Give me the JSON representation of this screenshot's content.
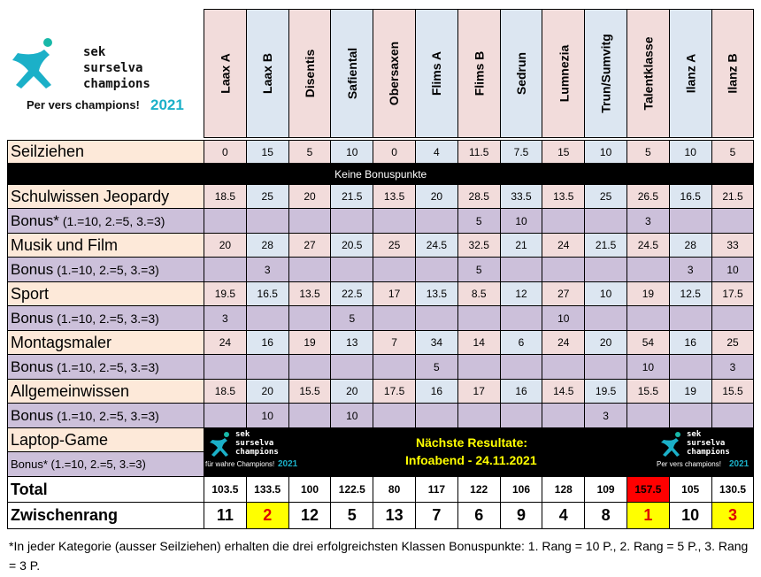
{
  "logo": {
    "line1": "sek",
    "line2": "surselva",
    "line3": "champions",
    "slogan": "Per vers champions!",
    "year": "2021"
  },
  "columns": [
    "Laax A",
    "Laax B",
    "Disentis",
    "Safiental",
    "Obersaxen",
    "Flims A",
    "Flims B",
    "Sedrun",
    "Lumnezia",
    "Trun/Sumvitg",
    "Talentklasse",
    "Ilanz A",
    "Ilanz B"
  ],
  "rows": [
    {
      "label": "Seilziehen",
      "values": [
        0,
        15,
        5,
        10,
        0,
        4,
        11.5,
        7.5,
        15,
        10,
        5,
        10,
        5
      ]
    },
    {
      "banner": "Keine Bonuspunkte"
    },
    {
      "label": "Schulwissen Jeopardy",
      "values": [
        18.5,
        25,
        20,
        21.5,
        13.5,
        20,
        28.5,
        33.5,
        13.5,
        25,
        26.5,
        16.5,
        21.5
      ]
    },
    {
      "label": "Bonus*",
      "note": "(1.=10, 2.=5, 3.=3)",
      "values": [
        null,
        null,
        null,
        null,
        null,
        null,
        5,
        10,
        null,
        null,
        3,
        null,
        null
      ]
    },
    {
      "label": "Musik und Film",
      "values": [
        20,
        28,
        27,
        20.5,
        25,
        24.5,
        32.5,
        21,
        24,
        21.5,
        24.5,
        28,
        33
      ]
    },
    {
      "label": "Bonus",
      "note": "(1.=10, 2.=5, 3.=3)",
      "values": [
        null,
        3,
        null,
        null,
        null,
        null,
        5,
        null,
        null,
        null,
        null,
        3,
        10
      ]
    },
    {
      "label": "Sport",
      "values": [
        19.5,
        16.5,
        13.5,
        22.5,
        17,
        13.5,
        8.5,
        12,
        27,
        10,
        19,
        12.5,
        17.5
      ]
    },
    {
      "label": "Bonus",
      "note": "(1.=10, 2.=5, 3.=3)",
      "values": [
        3,
        null,
        null,
        5,
        null,
        null,
        null,
        null,
        10,
        null,
        null,
        null,
        null
      ]
    },
    {
      "label": "Montagsmaler",
      "values": [
        24,
        16,
        19,
        13,
        7,
        34,
        14,
        6,
        24,
        20,
        54,
        16,
        25
      ]
    },
    {
      "label": "Bonus",
      "note": "(1.=10, 2.=5, 3.=3)",
      "values": [
        null,
        null,
        null,
        null,
        null,
        5,
        null,
        null,
        null,
        null,
        10,
        null,
        3
      ]
    },
    {
      "label": "Allgemeinwissen",
      "values": [
        18.5,
        20,
        15.5,
        20,
        17.5,
        16,
        17,
        16,
        14.5,
        19.5,
        15.5,
        19,
        15.5
      ]
    },
    {
      "label": "Bonus",
      "note": "(1.=10, 2.=5, 3.=3)",
      "values": [
        null,
        10,
        null,
        10,
        null,
        null,
        null,
        null,
        null,
        3,
        null,
        null,
        null
      ]
    }
  ],
  "laptop_game": {
    "label": "Laptop-Game",
    "bonus_label": "Bonus* (1.=10, 2.=5, 3.=3)",
    "next_results": "Nächste Resultate:",
    "date": "Infoabend - 24.11.2021",
    "logo_left": {
      "line1": "sek",
      "line2": "surselva",
      "line3": "champions",
      "slogan": "für wahre Champions!",
      "year": "2021"
    },
    "logo_right": {
      "line1": "sek",
      "line2": "surselva",
      "line3": "champions",
      "slogan": "Per vers champions!",
      "year": "2021"
    }
  },
  "total": {
    "label": "Total",
    "values": [
      103.5,
      133.5,
      100,
      122.5,
      80,
      117,
      122,
      106,
      128,
      109,
      157.5,
      105,
      130.5
    ]
  },
  "rank": {
    "label": "Zwischenrang",
    "values": [
      11,
      2,
      12,
      5,
      13,
      7,
      6,
      9,
      4,
      8,
      1,
      10,
      3
    ]
  },
  "footnote": "*In jeder Kategorie (ausser Seilziehen) erhalten die drei erfolgreichsten Klassen Bonuspunkte: 1. Rang = 10 P., 2. Rang = 5 P., 3. Rang = 3 P."
}
